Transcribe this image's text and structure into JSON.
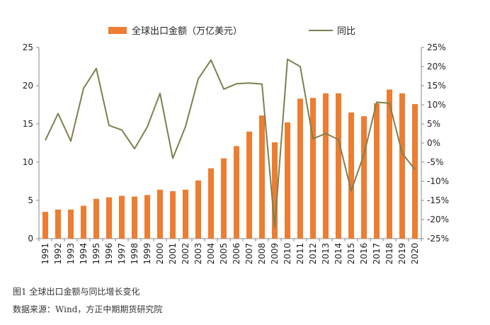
{
  "chart_data": {
    "type": "bar+line",
    "categories": [
      "1991",
      "1992",
      "1993",
      "1994",
      "1995",
      "1996",
      "1997",
      "1998",
      "1999",
      "2000",
      "2001",
      "2002",
      "2003",
      "2004",
      "2005",
      "2006",
      "2007",
      "2008",
      "2009",
      "2010",
      "2011",
      "2012",
      "2013",
      "2014",
      "2015",
      "2016",
      "2017",
      "2018",
      "2019",
      "2020"
    ],
    "series": [
      {
        "name": "全球出口金额（万亿美元）",
        "type": "bar",
        "axis": "left",
        "color": "#ED7D31",
        "values": [
          3.5,
          3.8,
          3.8,
          4.3,
          5.2,
          5.4,
          5.6,
          5.5,
          5.7,
          6.4,
          6.2,
          6.4,
          7.6,
          9.2,
          10.5,
          12.1,
          14.0,
          16.1,
          12.6,
          15.2,
          18.3,
          18.4,
          19.0,
          19.0,
          16.5,
          16.0,
          17.7,
          19.5,
          19.0,
          17.6
        ]
      },
      {
        "name": "同比",
        "type": "line",
        "axis": "right",
        "color": "#7F7F4F",
        "values": [
          0.007,
          0.077,
          0.005,
          0.143,
          0.195,
          0.046,
          0.034,
          -0.015,
          0.042,
          0.13,
          -0.04,
          0.043,
          0.168,
          0.217,
          0.141,
          0.155,
          0.157,
          0.154,
          -0.22,
          0.219,
          0.2,
          0.011,
          0.025,
          0.009,
          -0.125,
          -0.03,
          0.107,
          0.104,
          -0.027,
          -0.069
        ]
      }
    ],
    "y_left": {
      "min": 0,
      "max": 25,
      "ticks": [
        "0",
        "5",
        "10",
        "15",
        "20",
        "25"
      ]
    },
    "y_right": {
      "min": -0.25,
      "max": 0.25,
      "ticks": [
        "25%",
        "20%",
        "15%",
        "10%",
        "5%",
        "0%",
        "-5%",
        "-10%",
        "-15%",
        "-20%",
        "-25%"
      ]
    },
    "grid": false,
    "legend_position": "top"
  },
  "legend": {
    "bar_label": "全球出口金额（万亿美元）",
    "line_label": "同比"
  },
  "captions": {
    "figure": "图1 全球出口金额与同比增长变化",
    "source": "数据来源：Wind，方正中期期货研究院"
  }
}
